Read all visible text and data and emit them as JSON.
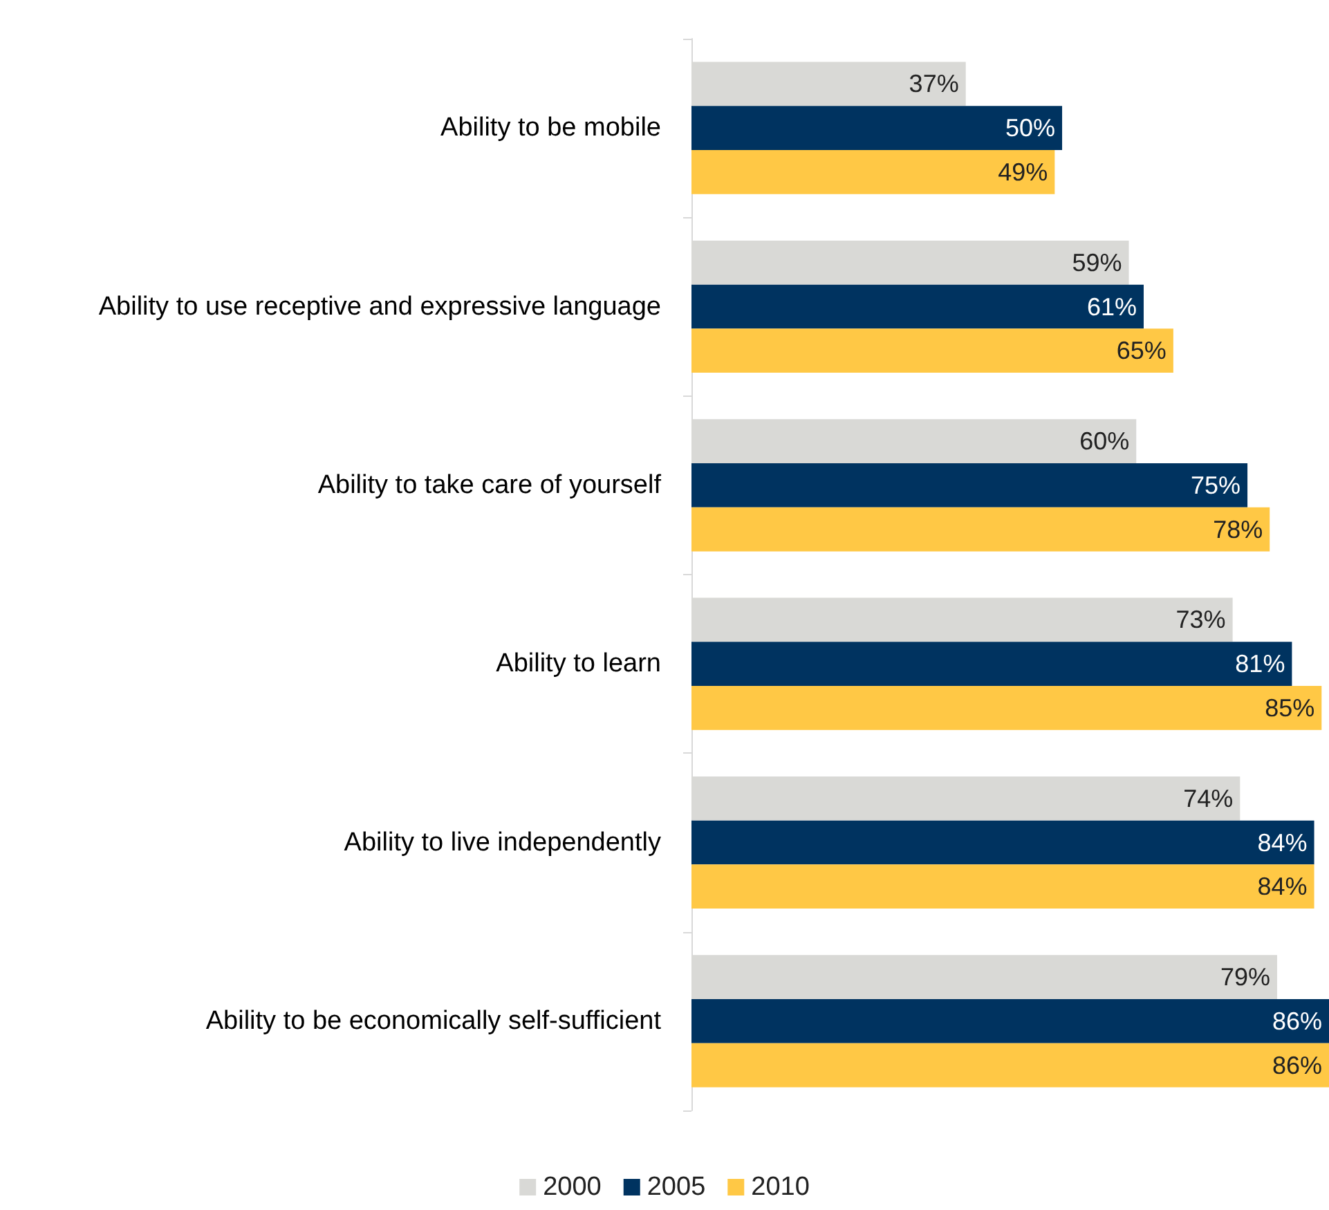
{
  "chart_data": {
    "type": "bar",
    "orientation": "horizontal",
    "legend": "bottom",
    "categories": [
      "Ability to be mobile",
      "Ability to use receptive and expressive language",
      "Ability to take care of yourself",
      "Ability to learn",
      "Ability to live independently",
      "Ability to be economically self-sufficient"
    ],
    "series": [
      {
        "name": "2000",
        "color": "#d9d9d6",
        "values": [
          37,
          59,
          60,
          73,
          74,
          79
        ],
        "value_labels": [
          "37%",
          "59%",
          "60%",
          "73%",
          "74%",
          "79%"
        ]
      },
      {
        "name": "2005",
        "color": "#003360",
        "values": [
          50,
          61,
          75,
          81,
          84,
          86
        ],
        "value_labels": [
          "50%",
          "61%",
          "75%",
          "81%",
          "84%",
          "86%"
        ]
      },
      {
        "name": "2010",
        "color": "#ffc845",
        "values": [
          49,
          65,
          78,
          85,
          84,
          86
        ],
        "value_labels": [
          "49%",
          "65%",
          "78%",
          "85%",
          "84%",
          "86%"
        ]
      }
    ]
  }
}
